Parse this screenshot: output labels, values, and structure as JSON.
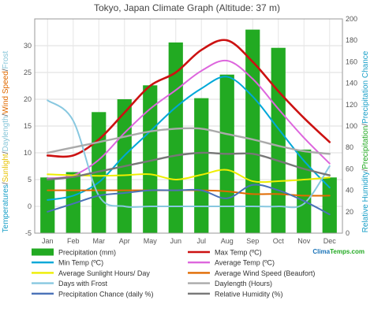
{
  "chart_data": {
    "type": "bar+line",
    "title": "Tokyo, Japan Climate Graph (Altitude: 37 m)",
    "categories": [
      "Jan",
      "Feb",
      "Mar",
      "Apr",
      "May",
      "Jun",
      "Jul",
      "Aug",
      "Sep",
      "Oct",
      "Nov",
      "Dec"
    ],
    "left_axis": {
      "ticks": [
        "-5",
        "0",
        "5",
        "10",
        "15",
        "20",
        "25",
        "30"
      ],
      "ylim": [
        -5,
        35
      ],
      "label_parts": [
        {
          "text": "Temperatures",
          "color": "#1aa0c8"
        },
        {
          "text": "/",
          "color": "#555555"
        },
        {
          "text": "Sunlight",
          "color": "#e6c200"
        },
        {
          "text": "/",
          "color": "#555555"
        },
        {
          "text": "Daylength",
          "color": "#86c5d8"
        },
        {
          "text": "/",
          "color": "#555555"
        },
        {
          "text": "Wind Speed",
          "color": "#e06a00"
        },
        {
          "text": "/",
          "color": "#555555"
        },
        {
          "text": "Frost",
          "color": "#86c5d8"
        }
      ]
    },
    "right_axis": {
      "ticks": [
        "0",
        "20",
        "40",
        "60",
        "80",
        "100",
        "120",
        "140",
        "160",
        "180",
        "200"
      ],
      "ylim": [
        0,
        200
      ],
      "label_parts": [
        {
          "text": "Relative Humidity",
          "color": "#1aa0c8"
        },
        {
          "text": "/",
          "color": "#555555"
        },
        {
          "text": "Precipitation",
          "color": "#22aa22"
        },
        {
          "text": "/",
          "color": "#555555"
        },
        {
          "text": "Precipitation Chance",
          "color": "#1aa0c8"
        }
      ]
    },
    "bars": {
      "name": "Precipitation (mm)",
      "color": "#22aa22",
      "values": [
        52,
        57,
        113,
        125,
        138,
        178,
        126,
        148,
        190,
        173,
        78,
        52
      ]
    },
    "series": [
      {
        "name": "Max Temp (ºC)",
        "color": "#cc1111",
        "width": 2.6,
        "values": [
          9.5,
          9.5,
          12.5,
          17.5,
          22.5,
          25,
          29.2,
          31,
          27,
          21.5,
          16.5,
          12
        ]
      },
      {
        "name": "Min Temp (ºC)",
        "color": "#00a8d8",
        "width": 2,
        "values": [
          1.2,
          2,
          4.5,
          9.5,
          14,
          18.5,
          22,
          24.2,
          20.5,
          14.5,
          8.5,
          3.5
        ]
      },
      {
        "name": "Average Temp (ºC)",
        "color": "#dd66dd",
        "width": 2,
        "values": [
          5.2,
          5.8,
          8.7,
          13.7,
          18.2,
          21.7,
          25.3,
          27.2,
          23.8,
          18.2,
          12.8,
          8
        ]
      },
      {
        "name": "Average Sunlight Hours/ Day",
        "color": "#eeee00",
        "width": 2,
        "values": [
          6,
          5.8,
          5.7,
          5.8,
          6,
          5,
          5.9,
          6.8,
          4.7,
          4.7,
          5,
          5.4
        ]
      },
      {
        "name": "Average Wind Speed (Beaufort)",
        "color": "#e06a00",
        "width": 2,
        "values": [
          3,
          3,
          3,
          3,
          3,
          3,
          3,
          2.8,
          2.3,
          2.3,
          2,
          2
        ]
      },
      {
        "name": "Days with Frost",
        "color": "#88c8e0",
        "width": 2,
        "values": [
          19.8,
          16,
          2,
          0,
          0,
          0,
          0,
          0,
          0,
          0,
          0.5,
          7.5
        ]
      },
      {
        "name": "Daylength (Hours)",
        "color": "#aaaaaa",
        "width": 2.4,
        "values": [
          10,
          11,
          12,
          13,
          14,
          14.5,
          14.5,
          13.5,
          12.5,
          11.3,
          10.3,
          9.8
        ]
      },
      {
        "name": "Precipitation Chance (daily %)",
        "color": "#4a72b8",
        "width": 2,
        "values": [
          -1,
          0.5,
          2,
          2.5,
          3,
          3,
          3,
          1.5,
          4,
          3,
          1,
          -1.5
        ]
      },
      {
        "name": "Relative Humidity (%)",
        "color": "#777777",
        "width": 2.4,
        "values": [
          5,
          5.5,
          6.5,
          7.5,
          8.5,
          9.5,
          10,
          9.8,
          9.8,
          8.5,
          7,
          5.8
        ]
      }
    ],
    "legend_placement": "bottom",
    "grid": true
  },
  "watermark": {
    "prefix": "Clima",
    "suffix": "Temps.com"
  }
}
